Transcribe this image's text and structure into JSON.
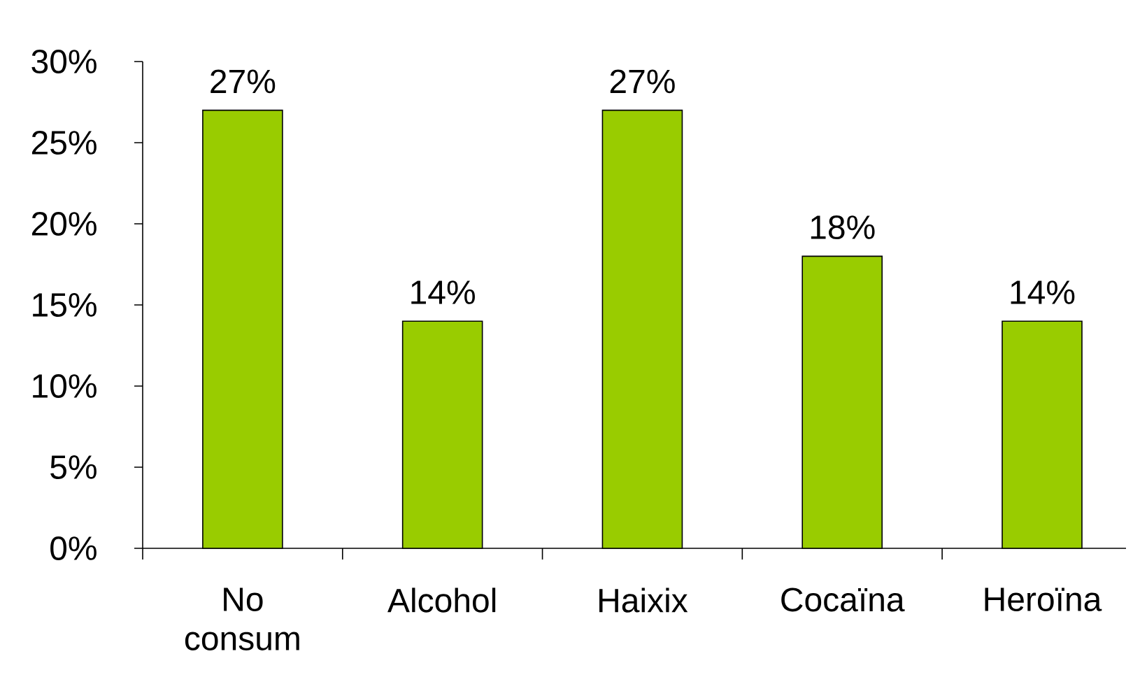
{
  "chart_data": {
    "type": "bar",
    "categories": [
      "No consum",
      "Alcohol",
      "Haixix",
      "Cocaïna",
      "Heroïna"
    ],
    "values": [
      27,
      14,
      27,
      18,
      14
    ],
    "value_labels": [
      "27%",
      "14%",
      "27%",
      "18%",
      "14%"
    ],
    "color": "#99cc00",
    "ylim": [
      0,
      30
    ],
    "yticks": [
      {
        "value": 0,
        "label": "0%"
      },
      {
        "value": 5,
        "label": "5%"
      },
      {
        "value": 10,
        "label": "10%"
      },
      {
        "value": 15,
        "label": "15%"
      },
      {
        "value": 20,
        "label": "20%"
      },
      {
        "value": 25,
        "label": "25%"
      },
      {
        "value": 30,
        "label": "30%"
      }
    ]
  }
}
